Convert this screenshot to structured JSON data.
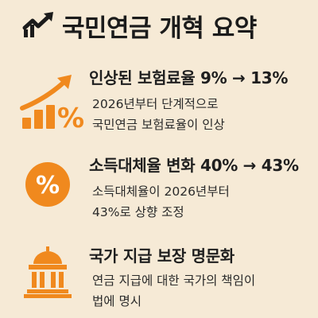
{
  "header": {
    "title": "국민연금 개혁 요약",
    "icon": "trending-up-chart-icon"
  },
  "sections": [
    {
      "icon": "rising-bar-percent-icon",
      "title": "인상된 보험료율 9% → 13%",
      "desc_lines": [
        "2026년부터 단계적으로",
        "국민연금 보험료율이 인상"
      ]
    },
    {
      "icon": "percent-circle-icon",
      "title": "소득대체율 변화 40% → 43%",
      "desc_lines": [
        "소득대체율이 2026년부터",
        "43%로 상향 조정"
      ]
    },
    {
      "icon": "government-building-icon",
      "title": "국가 지급 보장 명문화",
      "desc_lines": [
        "연금 지급에 대한 국가의 책임이",
        "법에 명시"
      ]
    }
  ],
  "colors": {
    "background": "#f6ead6",
    "accent": "#f0891e",
    "text": "#1f1f1f"
  }
}
